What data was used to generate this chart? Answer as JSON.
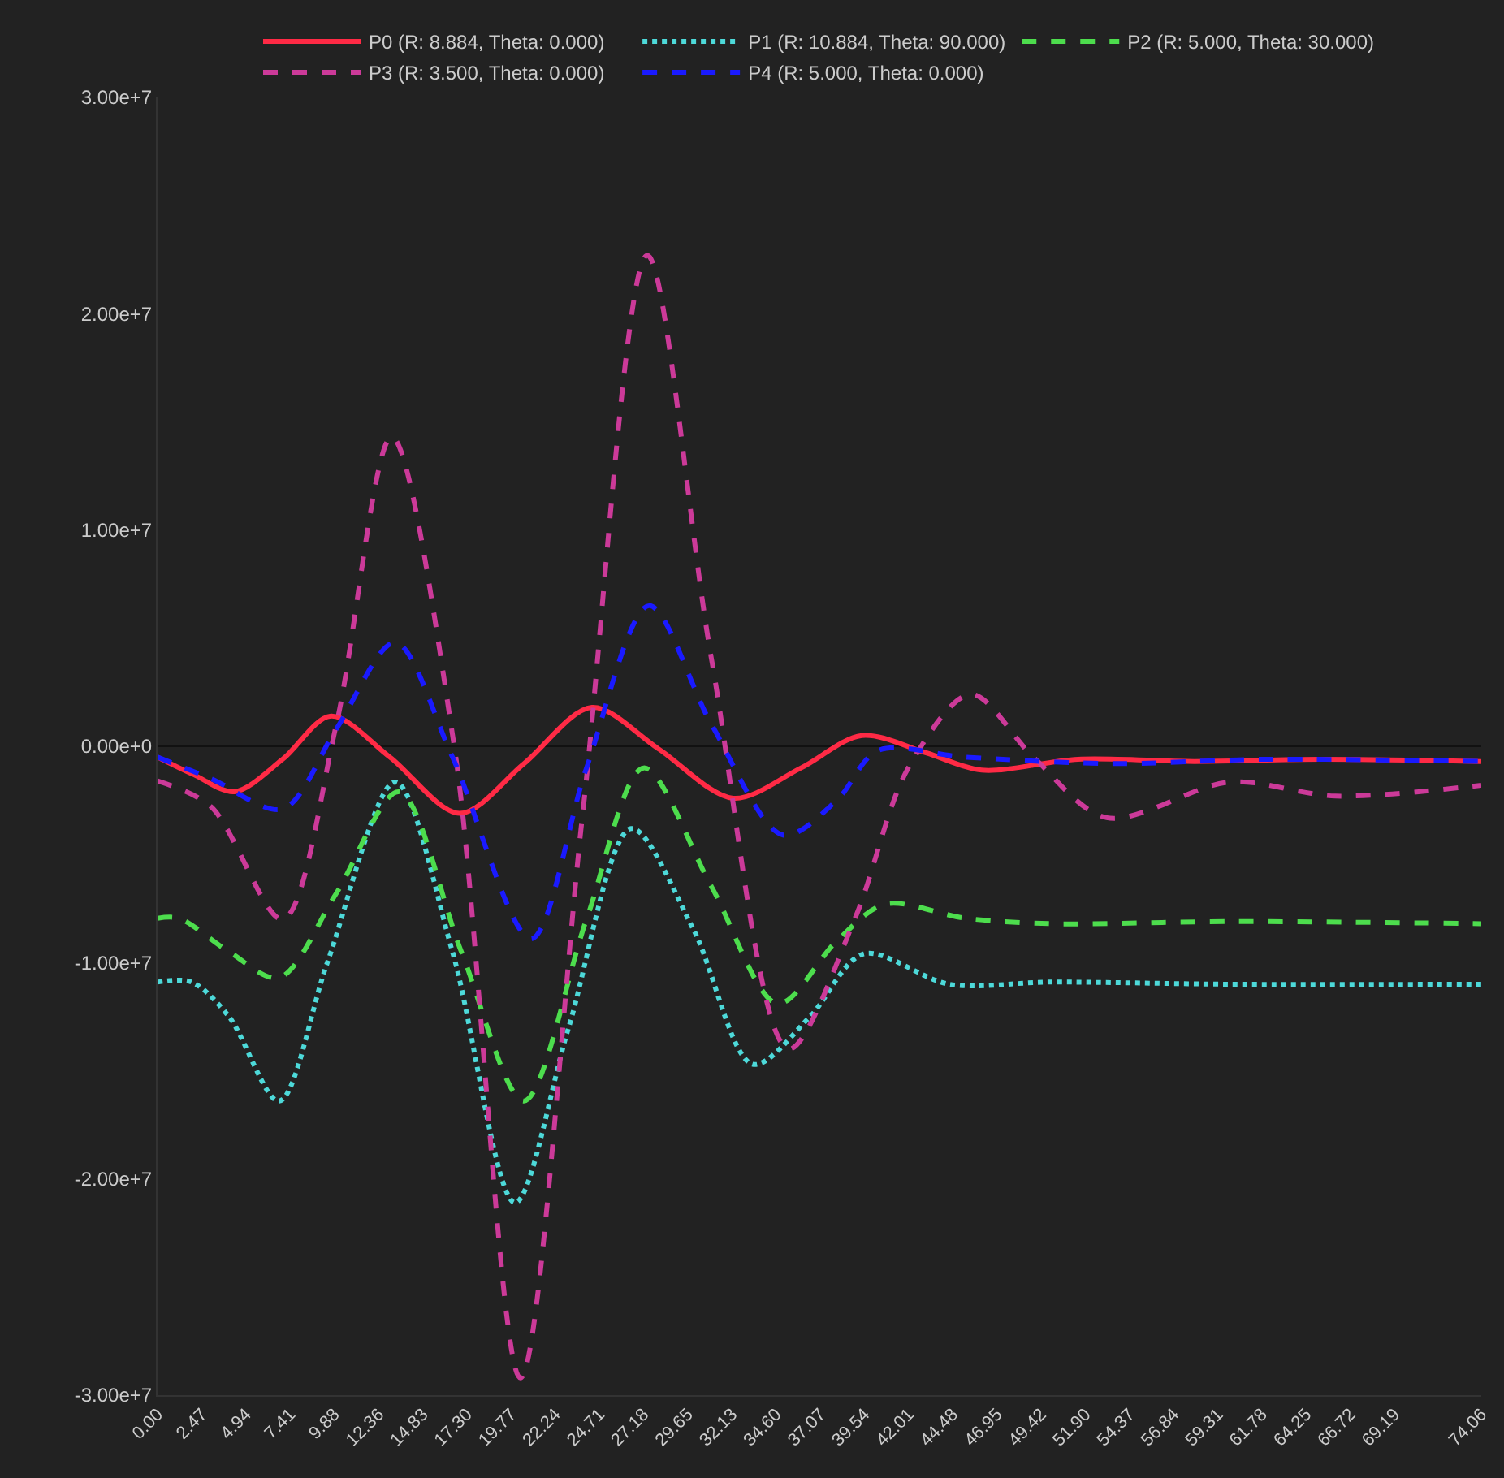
{
  "chart_data": {
    "type": "line",
    "legend": "top",
    "grid": false,
    "xlim": [
      0,
      74.06
    ],
    "ylim": [
      -30000000,
      30000000
    ],
    "xticks": [
      {
        "value": 0,
        "label": "0.00"
      },
      2.47,
      4.94,
      7.41,
      9.88,
      12.36,
      14.83,
      {
        "value": 17.3,
        "label": "17.30"
      },
      19.77,
      22.24,
      24.71,
      27.18,
      29.65,
      32.13,
      {
        "value": 34.6,
        "label": "34.60"
      },
      37.07,
      39.54,
      42.01,
      44.48,
      46.95,
      49.42,
      {
        "value": 51.9,
        "label": "51.90"
      },
      54.37,
      56.84,
      59.31,
      61.78,
      64.25,
      66.72,
      69.19,
      74.06
    ],
    "yticks": [
      {
        "value": -30000000,
        "label": "-3.00e+7"
      },
      {
        "value": -20000000,
        "label": "-2.00e+7"
      },
      {
        "value": -10000000,
        "label": "-1.00e+7"
      },
      {
        "value": 0,
        "label": "0.00e+0"
      },
      {
        "value": 10000000,
        "label": "1.00e+7"
      },
      {
        "value": 20000000,
        "label": "2.00e+7"
      },
      {
        "value": 30000000,
        "label": "3.00e+7"
      }
    ],
    "ref_lines": [
      {
        "axis": "y",
        "value": 0,
        "color": "#111111"
      }
    ],
    "series": [
      {
        "name": "P0 (R: 8.884, Theta: 0.000)",
        "color": "#ff2a45",
        "line_style": "solid",
        "x": [
          0,
          2,
          4.3,
          7,
          9.7,
          13,
          16.9,
          20.5,
          24.3,
          28,
          32.2,
          36,
          39.4,
          43,
          46.1,
          51.5,
          58,
          65,
          74.06
        ],
        "values": [
          -500000,
          -1300000,
          -2100000,
          -600000,
          1400000,
          -500000,
          -3100000,
          -800000,
          1800000,
          -100000,
          -2400000,
          -1000000,
          500000,
          -300000,
          -1100000,
          -600000,
          -700000,
          -600000,
          -700000
        ]
      },
      {
        "name": "P1 (R: 10.884, Theta: 90.000)",
        "color": "#4dd9d9",
        "line_style": "dotted",
        "x": [
          0,
          1.9,
          4,
          6.8,
          9.5,
          13.3,
          16.5,
          20,
          23,
          26.5,
          30,
          33.3,
          36.5,
          39.5,
          44.3,
          50,
          60,
          74.06
        ],
        "values": [
          -10900000,
          -10900000,
          -12500000,
          -16400000,
          -10000000,
          -1650000,
          -9500000,
          -21100000,
          -13000000,
          -3800000,
          -8500000,
          -14700000,
          -12500000,
          -9600000,
          -11000000,
          -10900000,
          -11000000,
          -11000000
        ]
      },
      {
        "name": "P2 (R: 5.000, Theta: 30.000)",
        "color": "#4ddd4d",
        "line_style": "dashed",
        "x": [
          0,
          1.2,
          4,
          6.8,
          10,
          13.5,
          17,
          20.5,
          24,
          27.2,
          31,
          34.7,
          38,
          40.7,
          45.2,
          50,
          60,
          74.06
        ],
        "values": [
          -7950000,
          -7950000,
          -9500000,
          -10700000,
          -6800000,
          -2100000,
          -9500000,
          -16400000,
          -8000000,
          -1000000,
          -6500000,
          -11900000,
          -9000000,
          -7300000,
          -7950000,
          -8200000,
          -8100000,
          -8200000
        ]
      },
      {
        "name": "P3 (R: 3.500, Theta: 0.000)",
        "color": "#cc3a99",
        "line_style": "dashed",
        "x": [
          0,
          3,
          7,
          10,
          13.1,
          16.6,
          20.3,
          23.8,
          27.4,
          31,
          35.3,
          39,
          42,
          45.5,
          49,
          53.1,
          60,
          65.9,
          74.06
        ],
        "values": [
          -1600000,
          -2800000,
          -8000000,
          1000000,
          14300000,
          0,
          -29200000,
          -3000000,
          22700000,
          4000000,
          -14000000,
          -8000000,
          -1000000,
          2400000,
          -500000,
          -3300000,
          -1650000,
          -2300000,
          -1800000
        ]
      },
      {
        "name": "P4 (R: 5.000, Theta: 0.000)",
        "color": "#1a1aff",
        "line_style": "dashed",
        "x": [
          0,
          3,
          7,
          10,
          13.3,
          16.5,
          20.9,
          24,
          27.5,
          31,
          35,
          38,
          40.3,
          45.2,
          53.3,
          62,
          74.06
        ],
        "values": [
          -500000,
          -1500000,
          -2900000,
          800000,
          4800000,
          -500000,
          -8900000,
          -1000000,
          6500000,
          1000000,
          -4100000,
          -2500000,
          -200000,
          -500000,
          -800000,
          -600000,
          -700000
        ]
      }
    ]
  }
}
